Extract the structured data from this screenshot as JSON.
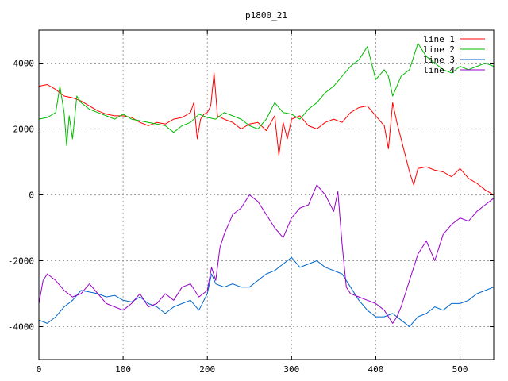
{
  "chart_data": {
    "type": "line",
    "title": "p1800_21",
    "xlabel": "",
    "ylabel": "",
    "xlim": [
      0,
      540
    ],
    "ylim": [
      -5000,
      5000
    ],
    "xticks": [
      0,
      100,
      200,
      300,
      400,
      500
    ],
    "yticks": [
      -4000,
      -2000,
      0,
      2000,
      4000
    ],
    "grid": true,
    "legend": "top-right",
    "series": [
      {
        "name": "line 1",
        "color": "#ff0000",
        "x": [
          0,
          10,
          20,
          30,
          40,
          50,
          60,
          70,
          80,
          90,
          100,
          110,
          120,
          130,
          140,
          150,
          160,
          170,
          180,
          184,
          188,
          192,
          196,
          200,
          204,
          208,
          212,
          220,
          230,
          240,
          250,
          260,
          270,
          280,
          285,
          290,
          295,
          300,
          310,
          320,
          330,
          340,
          350,
          360,
          370,
          380,
          390,
          400,
          410,
          415,
          420,
          425,
          430,
          440,
          445,
          450,
          460,
          470,
          480,
          490,
          500,
          510,
          520,
          530,
          540
        ],
        "y": [
          3300,
          3350,
          3200,
          3000,
          2950,
          2850,
          2700,
          2550,
          2450,
          2400,
          2400,
          2350,
          2200,
          2100,
          2200,
          2150,
          2300,
          2350,
          2500,
          2800,
          1700,
          2300,
          2450,
          2500,
          2700,
          3700,
          2400,
          2300,
          2200,
          2000,
          2150,
          2200,
          1950,
          2400,
          1200,
          2200,
          1700,
          2300,
          2400,
          2100,
          2000,
          2200,
          2300,
          2200,
          2500,
          2650,
          2700,
          2400,
          2100,
          1400,
          2800,
          2200,
          1700,
          700,
          300,
          800,
          850,
          750,
          700,
          550,
          800,
          500,
          350,
          150,
          0
        ]
      },
      {
        "name": "line 2",
        "color": "#00bb00",
        "x": [
          0,
          10,
          20,
          25,
          30,
          33,
          36,
          40,
          45,
          50,
          60,
          70,
          80,
          90,
          100,
          110,
          120,
          130,
          140,
          150,
          160,
          170,
          180,
          190,
          200,
          210,
          220,
          230,
          240,
          250,
          260,
          270,
          280,
          290,
          300,
          310,
          320,
          330,
          340,
          350,
          360,
          370,
          380,
          390,
          400,
          410,
          415,
          420,
          430,
          440,
          450,
          460,
          470,
          480,
          490,
          500,
          510,
          520,
          530,
          540
        ],
        "y": [
          2300,
          2350,
          2500,
          3300,
          2500,
          1500,
          2400,
          1700,
          3000,
          2800,
          2600,
          2500,
          2400,
          2300,
          2450,
          2300,
          2250,
          2200,
          2150,
          2100,
          1900,
          2100,
          2200,
          2450,
          2350,
          2300,
          2500,
          2400,
          2300,
          2100,
          2000,
          2300,
          2800,
          2500,
          2450,
          2300,
          2600,
          2800,
          3100,
          3300,
          3600,
          3900,
          4100,
          4500,
          3500,
          3800,
          3600,
          3000,
          3600,
          3800,
          4600,
          4200,
          4000,
          3800,
          3700,
          3900,
          3800,
          3900,
          4000,
          3900
        ]
      },
      {
        "name": "line 3",
        "color": "#0066cc",
        "x": [
          0,
          10,
          20,
          30,
          40,
          50,
          60,
          70,
          80,
          90,
          100,
          110,
          120,
          130,
          140,
          150,
          160,
          170,
          180,
          190,
          200,
          205,
          210,
          220,
          230,
          240,
          250,
          260,
          270,
          280,
          290,
          300,
          310,
          320,
          330,
          340,
          350,
          360,
          370,
          380,
          390,
          400,
          410,
          420,
          430,
          440,
          450,
          460,
          470,
          480,
          490,
          500,
          510,
          520,
          530,
          540
        ],
        "y": [
          -3800,
          -3900,
          -3700,
          -3400,
          -3200,
          -2900,
          -2950,
          -3000,
          -3100,
          -3050,
          -3200,
          -3250,
          -3100,
          -3300,
          -3400,
          -3600,
          -3400,
          -3300,
          -3200,
          -3500,
          -3000,
          -2400,
          -2700,
          -2800,
          -2700,
          -2800,
          -2800,
          -2600,
          -2400,
          -2300,
          -2100,
          -1900,
          -2200,
          -2100,
          -2000,
          -2200,
          -2300,
          -2400,
          -2800,
          -3200,
          -3500,
          -3700,
          -3700,
          -3600,
          -3800,
          -4000,
          -3700,
          -3600,
          -3400,
          -3500,
          -3300,
          -3300,
          -3200,
          -3000,
          -2900,
          -2800
        ]
      },
      {
        "name": "line 4",
        "color": "#9900cc",
        "x": [
          0,
          5,
          10,
          20,
          30,
          40,
          50,
          60,
          70,
          80,
          90,
          100,
          110,
          120,
          130,
          140,
          150,
          160,
          170,
          180,
          190,
          200,
          205,
          210,
          215,
          220,
          230,
          240,
          250,
          260,
          270,
          280,
          290,
          300,
          310,
          320,
          330,
          340,
          350,
          355,
          360,
          365,
          370,
          380,
          390,
          400,
          410,
          420,
          425,
          430,
          440,
          450,
          460,
          470,
          480,
          490,
          500,
          510,
          520,
          530,
          540
        ],
        "y": [
          -3300,
          -2600,
          -2400,
          -2600,
          -2900,
          -3100,
          -3000,
          -2700,
          -3000,
          -3300,
          -3400,
          -3500,
          -3300,
          -3000,
          -3400,
          -3300,
          -3000,
          -3200,
          -2800,
          -2700,
          -3100,
          -2900,
          -2200,
          -2600,
          -1600,
          -1200,
          -600,
          -400,
          0,
          -200,
          -600,
          -1000,
          -1300,
          -700,
          -400,
          -300,
          300,
          0,
          -500,
          100,
          -1500,
          -2800,
          -3000,
          -3100,
          -3200,
          -3300,
          -3500,
          -3900,
          -3700,
          -3400,
          -2600,
          -1800,
          -1400,
          -2000,
          -1200,
          -900,
          -700,
          -800,
          -500,
          -300,
          -100
        ]
      }
    ]
  }
}
